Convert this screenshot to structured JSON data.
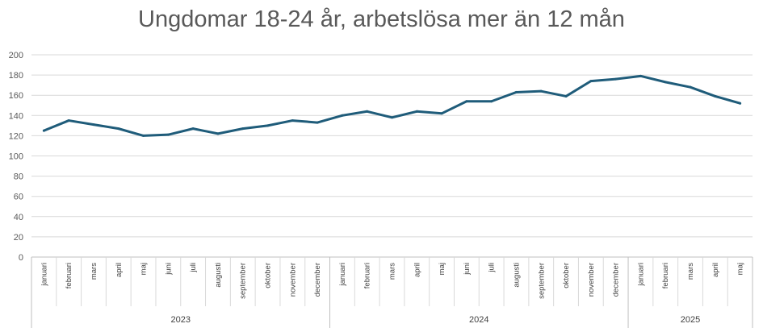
{
  "chart_data": {
    "type": "line",
    "title": "Ungdomar 18-24 år, arbetslösa mer än 12 mån",
    "xlabel": "",
    "ylabel": "",
    "ylim": [
      0,
      200
    ],
    "yticks": [
      0,
      20,
      40,
      60,
      80,
      100,
      120,
      140,
      160,
      180,
      200
    ],
    "grid": true,
    "legend": "none",
    "line_color": "#1F5C7A",
    "years": [
      {
        "label": "2023",
        "months": 12
      },
      {
        "label": "2024",
        "months": 12
      },
      {
        "label": "2025",
        "months": 5
      }
    ],
    "categories": [
      "januari",
      "februari",
      "mars",
      "april",
      "maj",
      "juni",
      "juli",
      "augusti",
      "september",
      "oktober",
      "november",
      "december",
      "januari",
      "februari",
      "mars",
      "april",
      "maj",
      "juni",
      "juli",
      "augusti",
      "september",
      "oktober",
      "november",
      "december",
      "januari",
      "februari",
      "mars",
      "april",
      "maj"
    ],
    "values": [
      125,
      135,
      131,
      127,
      120,
      121,
      127,
      122,
      127,
      130,
      135,
      133,
      140,
      144,
      138,
      144,
      142,
      154,
      154,
      163,
      164,
      159,
      174,
      176,
      179,
      173,
      168,
      159,
      152
    ]
  }
}
